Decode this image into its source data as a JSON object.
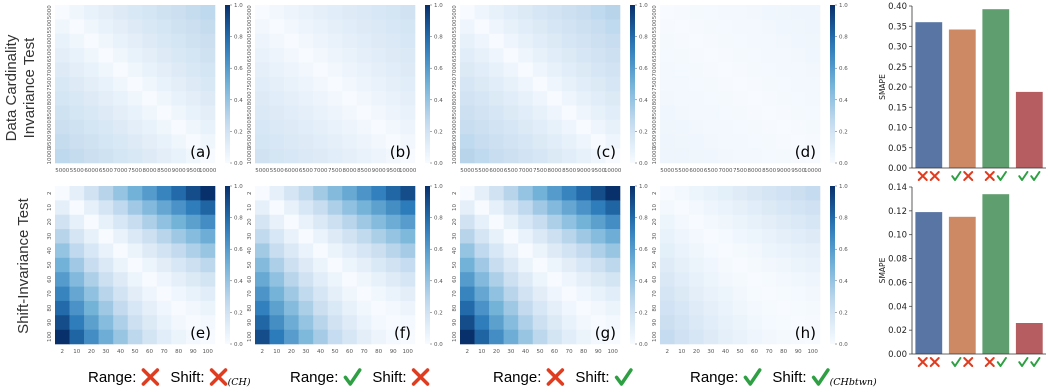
{
  "chart_data": {
    "type": "heatmap",
    "row_titles": [
      "Data Cardinality Invariance Test",
      "Shift-Invariance Test"
    ],
    "heatmap_rows": [
      {
        "axis_ticks": [
          "5000",
          "5500",
          "6000",
          "6500",
          "7000",
          "7500",
          "8000",
          "8500",
          "9000",
          "9500",
          "10000"
        ],
        "colorbar_ticks": [
          "0.0",
          "0.2",
          "0.4",
          "0.6",
          "0.8",
          "1.0"
        ],
        "panels": [
          {
            "label": "(a)",
            "strength": 0.28
          },
          {
            "label": "(b)",
            "strength": 0.2
          },
          {
            "label": "(c)",
            "strength": 0.3
          },
          {
            "label": "(d)",
            "strength": 0.05
          }
        ]
      },
      {
        "axis_ticks": [
          "2",
          "10",
          "20",
          "30",
          "40",
          "50",
          "60",
          "70",
          "80",
          "90",
          "100"
        ],
        "colorbar_ticks": [
          "0.0",
          "0.2",
          "0.4",
          "0.6",
          "0.8",
          "1.0"
        ],
        "panels": [
          {
            "label": "(e)",
            "strength": 1.0
          },
          {
            "label": "(f)",
            "strength": 0.9
          },
          {
            "label": "(g)",
            "strength": 1.0
          },
          {
            "label": "(h)",
            "strength": 0.26
          }
        ]
      }
    ],
    "bar_charts": [
      {
        "ylabel": "SMAPE",
        "yticks": [
          "0.00",
          "0.05",
          "0.10",
          "0.15",
          "0.20",
          "0.25",
          "0.30",
          "0.35",
          "0.40"
        ],
        "ylim": [
          0,
          0.4
        ],
        "values": [
          0.36,
          0.342,
          0.392,
          0.188
        ],
        "colors": [
          "#5875a4",
          "#cc8963",
          "#5f9e6e",
          "#b55d60"
        ]
      },
      {
        "ylabel": "SMAPE",
        "yticks": [
          "0.00",
          "0.02",
          "0.04",
          "0.06",
          "0.08",
          "0.10",
          "0.12",
          "0.14"
        ],
        "ylim": [
          0,
          0.14
        ],
        "values": [
          0.119,
          0.115,
          0.134,
          0.026
        ],
        "colors": [
          "#5875a4",
          "#cc8963",
          "#5f9e6e",
          "#b55d60"
        ]
      }
    ],
    "bar_markers": [
      [
        "cross",
        "cross"
      ],
      [
        "check",
        "cross"
      ],
      [
        "cross",
        "check"
      ],
      [
        "check",
        "check"
      ]
    ],
    "captions": [
      {
        "range_label": "Range:",
        "range_mark": "cross",
        "shift_label": "Shift:",
        "shift_mark": "cross",
        "shift_sub": "(CH)"
      },
      {
        "range_label": "Range:",
        "range_mark": "check",
        "shift_label": "Shift:",
        "shift_mark": "cross",
        "shift_sub": ""
      },
      {
        "range_label": "Range:",
        "range_mark": "cross",
        "shift_label": "Shift:",
        "shift_mark": "check",
        "shift_sub": ""
      },
      {
        "range_label": "Range:",
        "range_mark": "check",
        "shift_label": "Shift:",
        "shift_mark": "check",
        "shift_sub": "(CHbtwn)"
      }
    ],
    "mark_colors": {
      "check": "#2ea043",
      "cross": "#e03c1f"
    }
  }
}
